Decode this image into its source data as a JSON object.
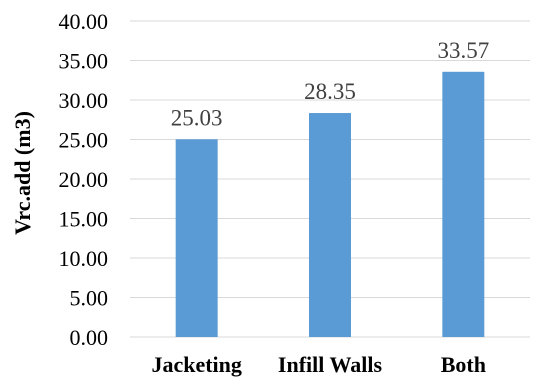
{
  "chart_data": {
    "type": "bar",
    "categories": [
      "Jacketing",
      "Infill Walls",
      "Both"
    ],
    "values": [
      25.03,
      28.35,
      33.57
    ],
    "data_labels": [
      "25.03",
      "28.35",
      "33.57"
    ],
    "ylabel": "Vrc.add (m3)",
    "ylim": [
      0,
      40
    ],
    "yticks": [
      "0.00",
      "5.00",
      "10.00",
      "15.00",
      "20.00",
      "25.00",
      "30.00",
      "35.00",
      "40.00"
    ],
    "grid": true,
    "bar_color": "#5b9bd5",
    "grid_color": "#d9d9d9"
  }
}
